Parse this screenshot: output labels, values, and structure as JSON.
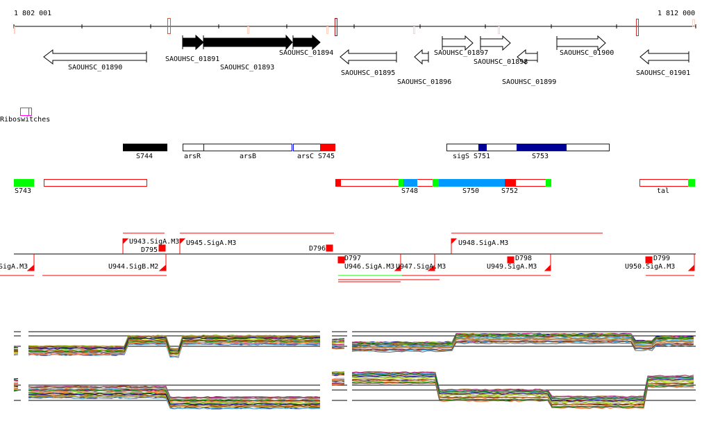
{
  "ruler": {
    "start": "1 802 001",
    "end": "1 812 000"
  },
  "genes": [
    {
      "label": "SAOUHSC_01890",
      "strand": "-",
      "highlighted": false
    },
    {
      "label": "SAOUHSC_01891",
      "strand": "+",
      "highlighted": true
    },
    {
      "label": "SAOUHSC_01893",
      "strand": "+",
      "highlighted": true
    },
    {
      "label": "SAOUHSC_01894",
      "strand": "+",
      "highlighted": true
    },
    {
      "label": "SAOUHSC_01895",
      "strand": "-",
      "highlighted": false
    },
    {
      "label": "SAOUHSC_01896",
      "strand": "-",
      "highlighted": false
    },
    {
      "label": "SAOUHSC_01897",
      "strand": "+",
      "highlighted": false
    },
    {
      "label": "SAOUHSC_01898",
      "strand": "+",
      "highlighted": false
    },
    {
      "label": "SAOUHSC_01899",
      "strand": "-",
      "highlighted": false
    },
    {
      "label": "SAOUHSC_01900",
      "strand": "+",
      "highlighted": false
    },
    {
      "label": "SAOUHSC_01901",
      "strand": "-",
      "highlighted": false
    }
  ],
  "riboswitch": {
    "label": "Riboswitches",
    "color": "#ff00ff"
  },
  "segments_top": [
    "S744",
    "arsR",
    "arsB",
    "arsC",
    "S745",
    "sigS",
    "S751",
    "S753"
  ],
  "segments_bottom": [
    "S743",
    "S748",
    "S750",
    "S752",
    "tal"
  ],
  "promoters": [
    "SigA.M3",
    "U943.SigA.M3",
    "D795",
    "U945.SigA.M3",
    "D796",
    "U944.SigB.M2",
    "D797",
    "U946.SigA.M3",
    "U947.SigA.M3",
    "U948.SigA.M3",
    "D798",
    "U949.SigA.M3",
    "D799",
    "U950.SigA.M3"
  ],
  "colors": {
    "red": "#ff0000",
    "green": "#00ff00",
    "lightblue": "#0099ff",
    "navy": "#000099",
    "blue": "#0000ff"
  }
}
